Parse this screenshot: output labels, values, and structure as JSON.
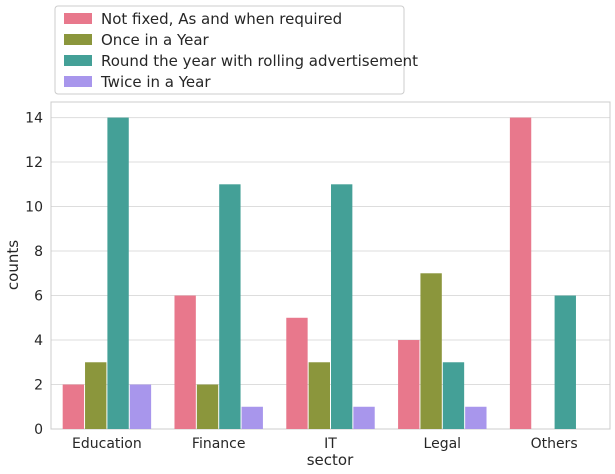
{
  "chart_data": {
    "type": "bar",
    "xlabel": "sector",
    "ylabel": "counts",
    "categories": [
      "Education",
      "Finance",
      "IT",
      "Legal",
      "Others"
    ],
    "series": [
      {
        "name": "Not fixed, As and when required",
        "color": "#e8788c",
        "values": [
          2,
          6,
          5,
          4,
          14
        ]
      },
      {
        "name": "Once in a Year",
        "color": "#8b963c",
        "values": [
          3,
          2,
          3,
          7,
          0
        ]
      },
      {
        "name": "Round the year with rolling advertisement",
        "color": "#44a097",
        "values": [
          14,
          11,
          11,
          3,
          6
        ]
      },
      {
        "name": "Twice in a Year",
        "color": "#a896ec",
        "values": [
          2,
          1,
          1,
          1,
          0
        ]
      }
    ],
    "yticks": [
      0,
      2,
      4,
      6,
      8,
      10,
      12,
      14
    ],
    "ylim": [
      0,
      14.7
    ],
    "grid": "horizontal",
    "legend_position": "top-left, outside plot"
  }
}
